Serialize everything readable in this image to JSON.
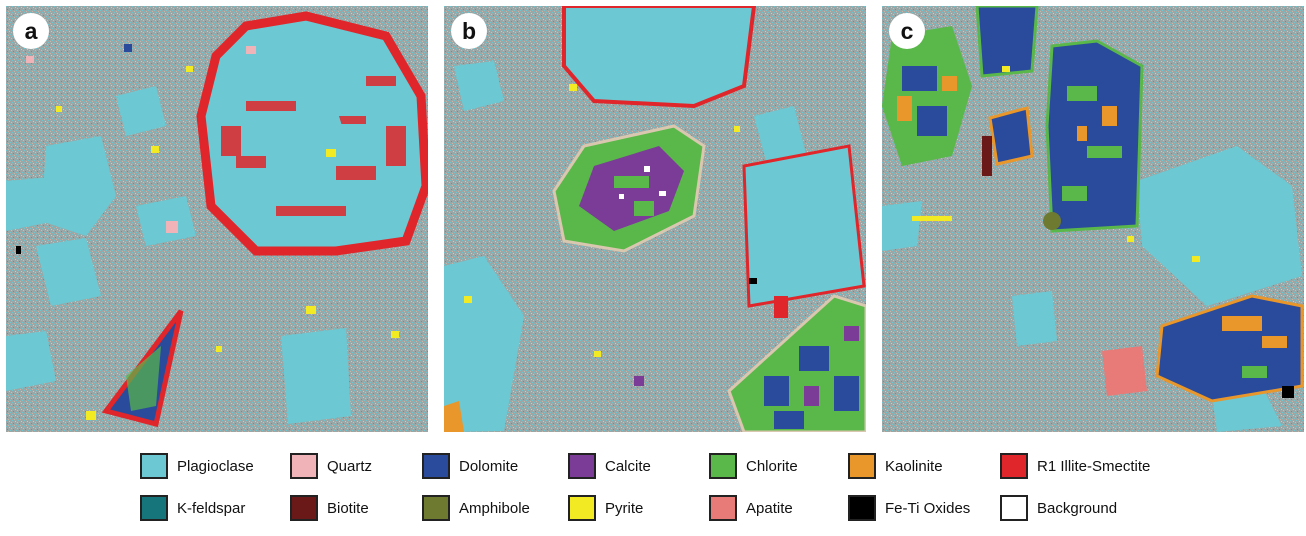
{
  "panels": [
    {
      "label": "a"
    },
    {
      "label": "b"
    },
    {
      "label": "c"
    }
  ],
  "colors": {
    "matrix": "#9aa7a6",
    "plagioclase": "#6cc8d2",
    "quartz": "#f0b4b8",
    "dolomite": "#2a4b9b",
    "calcite": "#7a3c97",
    "chlorite": "#5ab84a",
    "kaolinite": "#e9962a",
    "illite_smectite": "#e0262a",
    "k_feldspar": "#16757a",
    "biotite": "#6a1818",
    "amphibole": "#6e7a30",
    "pyrite": "#f2ea22",
    "apatite": "#e87a78",
    "fe_ti_oxides": "#000000",
    "background": "#ffffff"
  },
  "legend": [
    {
      "label": "Plagioclase",
      "color": "#6cc8d2"
    },
    {
      "label": "Quartz",
      "color": "#f0b4b8"
    },
    {
      "label": "Dolomite",
      "color": "#2a4b9b"
    },
    {
      "label": "Calcite",
      "color": "#7a3c97"
    },
    {
      "label": "Chlorite",
      "color": "#5ab84a"
    },
    {
      "label": "Kaolinite",
      "color": "#e9962a"
    },
    {
      "label": "R1 Illite-Smectite",
      "color": "#e0262a"
    },
    {
      "label": "K-feldspar",
      "color": "#16757a"
    },
    {
      "label": "Biotite",
      "color": "#6a1818"
    },
    {
      "label": "Amphibole",
      "color": "#6e7a30"
    },
    {
      "label": "Pyrite",
      "color": "#f2ea22"
    },
    {
      "label": "Apatite",
      "color": "#e87a78"
    },
    {
      "label": "Fe-Ti Oxides",
      "color": "#000000"
    },
    {
      "label": "Background",
      "color": "#ffffff"
    }
  ]
}
